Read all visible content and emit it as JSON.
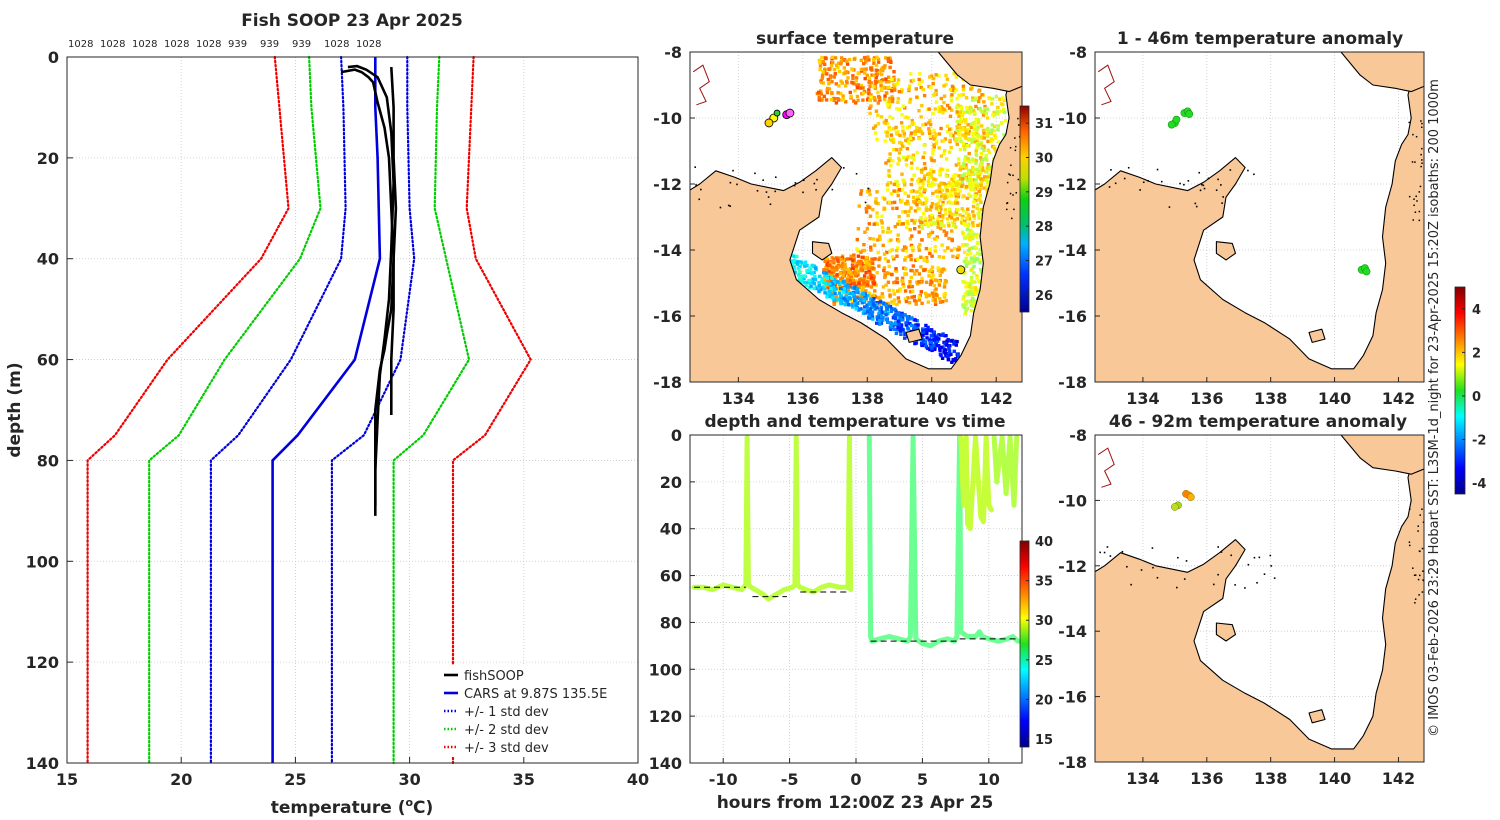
{
  "chart_data": [
    {
      "type": "line",
      "title": "Fish SOOP 23 Apr 2025",
      "xlabel": "temperature (°C)",
      "xlabel_main": "temperature (",
      "xlabel_o": "o",
      "xlabel_c": "C)",
      "ylabel": "depth (m)",
      "xlim": [
        15,
        40
      ],
      "ylim": [
        0,
        140
      ],
      "y_reversed": true,
      "xticks": [
        15,
        20,
        25,
        30,
        35,
        40
      ],
      "yticks": [
        0,
        20,
        40,
        60,
        80,
        100,
        120,
        140
      ],
      "grid": true,
      "legend_position": "bottom-right",
      "top_labels": [
        "1028",
        "1028",
        "1028",
        "1028",
        "1028",
        "939",
        "939",
        "939",
        "1028",
        "1028"
      ],
      "series": [
        {
          "name": "CARS at 9.87S 135.5E",
          "color": "#0000dd",
          "style": "solid",
          "x": [
            28.5,
            28.5,
            28.6,
            28.7,
            27.6,
            25.1,
            24.0,
            24.0
          ],
          "y": [
            0,
            10,
            20,
            40,
            60,
            75,
            80,
            140
          ]
        },
        {
          "name": "CARS -1 std",
          "legend": false,
          "color": "#0000dd",
          "style": "dotted",
          "x": [
            27.0,
            27.1,
            27.2,
            27.0,
            24.8,
            22.5,
            21.3,
            21.3
          ],
          "y": [
            0,
            10,
            30,
            40,
            60,
            75,
            80,
            140
          ]
        },
        {
          "name": "CARS +1 std",
          "legend": false,
          "color": "#0000dd",
          "style": "dotted",
          "x": [
            29.9,
            29.9,
            30.0,
            30.2,
            29.6,
            28.0,
            26.6,
            26.6
          ],
          "y": [
            0,
            10,
            30,
            40,
            60,
            75,
            80,
            140
          ]
        },
        {
          "name": "CARS -2 std",
          "legend": false,
          "color": "#00cc00",
          "style": "dotted",
          "x": [
            25.6,
            25.7,
            26.1,
            25.2,
            21.9,
            19.9,
            18.6,
            18.6
          ],
          "y": [
            0,
            10,
            30,
            40,
            60,
            75,
            80,
            140
          ]
        },
        {
          "name": "CARS +2 std",
          "legend": false,
          "color": "#00cc00",
          "style": "dotted",
          "x": [
            31.3,
            31.2,
            31.1,
            31.6,
            32.6,
            30.6,
            29.3,
            29.3
          ],
          "y": [
            0,
            10,
            30,
            40,
            60,
            75,
            80,
            140
          ]
        },
        {
          "name": "CARS -3 std",
          "legend": false,
          "color": "#ee0000",
          "style": "dotted",
          "x": [
            24.1,
            24.3,
            24.7,
            23.5,
            19.4,
            17.1,
            15.9,
            15.9
          ],
          "y": [
            0,
            10,
            30,
            40,
            60,
            75,
            80,
            140
          ]
        },
        {
          "name": "CARS +3 std",
          "legend": false,
          "color": "#ee0000",
          "style": "dotted",
          "x": [
            32.8,
            32.7,
            32.5,
            32.9,
            35.3,
            33.3,
            31.9,
            31.9
          ],
          "y": [
            0,
            10,
            30,
            40,
            60,
            75,
            80,
            140
          ]
        },
        {
          "name": "fishSOOP",
          "color": "#000000",
          "style": "solid",
          "x": [
            27.0,
            27.6,
            27.9,
            28.2,
            28.4,
            28.6,
            28.9,
            29.1,
            29.2,
            29.3,
            29.2,
            29.0,
            28.9,
            28.7,
            28.6,
            28.5,
            28.5,
            28.5,
            28.5
          ],
          "y": [
            3,
            2.5,
            3,
            4,
            5,
            9,
            14,
            20,
            30,
            40,
            50,
            55,
            58,
            62,
            66,
            70,
            80,
            85,
            89
          ]
        },
        {
          "name": "fishSOOP 2",
          "legend": false,
          "color": "#000000",
          "style": "solid",
          "x": [
            27.3,
            27.7,
            28.1,
            28.6,
            29.0,
            29.2,
            29.3,
            29.2,
            29.1,
            28.9,
            28.7,
            28.6,
            28.5,
            28.5
          ],
          "y": [
            2,
            1.8,
            2.5,
            4,
            8,
            15,
            25,
            38,
            48,
            56,
            63,
            72,
            82,
            91
          ]
        },
        {
          "name": "fishSOOP 3",
          "legend": false,
          "color": "#000000",
          "style": "solid",
          "x": [
            29.2,
            29.3,
            29.3,
            29.4,
            29.3,
            29.3,
            29.2,
            29.2
          ],
          "y": [
            2,
            10,
            20,
            30,
            40,
            50,
            60,
            71
          ]
        }
      ]
    },
    {
      "type": "heatmap",
      "title": "surface temperature",
      "xlim": [
        132.5,
        142.8
      ],
      "ylim": [
        -18,
        -8
      ],
      "xticks": [
        134,
        136,
        138,
        140,
        142
      ],
      "yticks": [
        -8,
        -10,
        -12,
        -14,
        -16,
        -18
      ],
      "colorbar_ticks": [
        26,
        27,
        28,
        29,
        30,
        31
      ],
      "colorbar_range": [
        25.5,
        31.5
      ]
    },
    {
      "type": "heatmap",
      "title": "1 - 46m temperature anomaly",
      "xlim": [
        132.5,
        142.8
      ],
      "ylim": [
        -18,
        -8
      ],
      "xticks": [
        134,
        136,
        138,
        140,
        142
      ],
      "yticks": [
        -8,
        -10,
        -12,
        -14,
        -16,
        -18
      ],
      "colorbar_ticks": [
        4,
        2,
        0,
        -2,
        -4
      ],
      "colorbar_range": [
        -4.5,
        5
      ]
    },
    {
      "type": "scatter",
      "title": "depth and temperature vs time",
      "xlabel": "hours from 12:00Z 23 Apr 25",
      "xlim": [
        -12.5,
        12.5
      ],
      "ylim": [
        0,
        140
      ],
      "y_reversed": true,
      "xticks": [
        -10,
        -5,
        0,
        5,
        10
      ],
      "xtick_labels": [
        "-10",
        "-5",
        "0",
        "5",
        "10"
      ],
      "yticks": [
        0,
        20,
        40,
        60,
        80,
        100,
        120,
        140
      ],
      "colorbar_ticks": [
        40,
        35,
        30,
        25,
        20,
        15
      ],
      "colorbar_range": [
        14,
        40
      ],
      "tracks": [
        {
          "temp": 28.6,
          "t": [
            -12.2,
            -11.5,
            -10.8,
            -10.0,
            -9.3,
            -8.6,
            -8.3,
            -8.2,
            -8.1,
            -7.9,
            -7.6,
            -7.0,
            -6.6,
            -6.0,
            -5.4,
            -4.8,
            -4.6,
            -4.5,
            -4.4,
            -4.2,
            -3.8,
            -3.2,
            -2.6,
            -2.0,
            -1.2,
            -0.6,
            -0.5,
            -0.4
          ],
          "d": [
            65,
            65,
            66,
            64,
            65,
            66,
            64,
            1,
            64,
            65,
            66,
            68,
            70,
            68,
            66,
            65,
            64,
            1,
            64,
            65,
            66,
            67,
            65,
            64,
            65,
            65,
            1,
            66
          ]
        },
        {
          "temp": 26.5,
          "t": [
            1.0,
            1.1,
            1.2,
            1.8,
            2.5,
            3.2,
            3.9,
            4.1,
            4.3,
            4.5,
            5.0,
            5.6,
            6.2,
            6.9,
            7.4,
            7.6,
            7.8,
            7.9,
            8.4,
            9.0,
            9.3,
            9.5,
            10.0,
            10.7,
            11.4,
            11.8,
            12.2
          ],
          "d": [
            1,
            86,
            88,
            87,
            86,
            87,
            88,
            86,
            1,
            87,
            89,
            90,
            88,
            87,
            88,
            86,
            1,
            84,
            86,
            86,
            84,
            86,
            87,
            88,
            87,
            86,
            88
          ]
        },
        {
          "temp": 28.8,
          "t": [
            7.9,
            8.1,
            8.3,
            8.4,
            8.6,
            9.0,
            9.4,
            9.6,
            9.8,
            10.0,
            10.2
          ],
          "d": [
            1,
            30,
            1,
            38,
            40,
            1,
            35,
            37,
            1,
            30,
            32
          ]
        },
        {
          "temp": 28.4,
          "t": [
            10.4,
            10.6,
            11.0,
            11.3,
            11.6,
            11.9,
            12.1
          ],
          "d": [
            1,
            20,
            1,
            25,
            1,
            30,
            1
          ]
        }
      ]
    },
    {
      "type": "heatmap",
      "title": "46 - 92m temperature anomaly",
      "xlim": [
        132.5,
        142.8
      ],
      "ylim": [
        -18,
        -8
      ],
      "xticks": [
        134,
        136,
        138,
        140,
        142
      ],
      "yticks": [
        -8,
        -10,
        -12,
        -14,
        -16,
        -18
      ]
    }
  ],
  "legend": {
    "items": [
      {
        "label": "fishSOOP",
        "color": "#000000",
        "style": "solid"
      },
      {
        "label": "CARS at 9.87S 135.5E",
        "color": "#0000dd",
        "style": "solid"
      },
      {
        "label": "+/- 1 std dev",
        "color": "#0000dd",
        "style": "dotted"
      },
      {
        "label": "+/- 2 std dev",
        "color": "#00cc00",
        "style": "dotted"
      },
      {
        "label": "+/- 3 std dev",
        "color": "#ee0000",
        "style": "dotted"
      }
    ]
  },
  "side_caption": "© IMOS 03-Feb-2026 23:29 Hobart SST: L3SM-1d_night for 23-Apr-2025 15:20Z isobaths: 200  1000m",
  "colors": {
    "land": "#f9c898",
    "axis": "#262626",
    "grid": "#c8c8c8",
    "coast": "#000000",
    "isobath": "#a01010"
  }
}
